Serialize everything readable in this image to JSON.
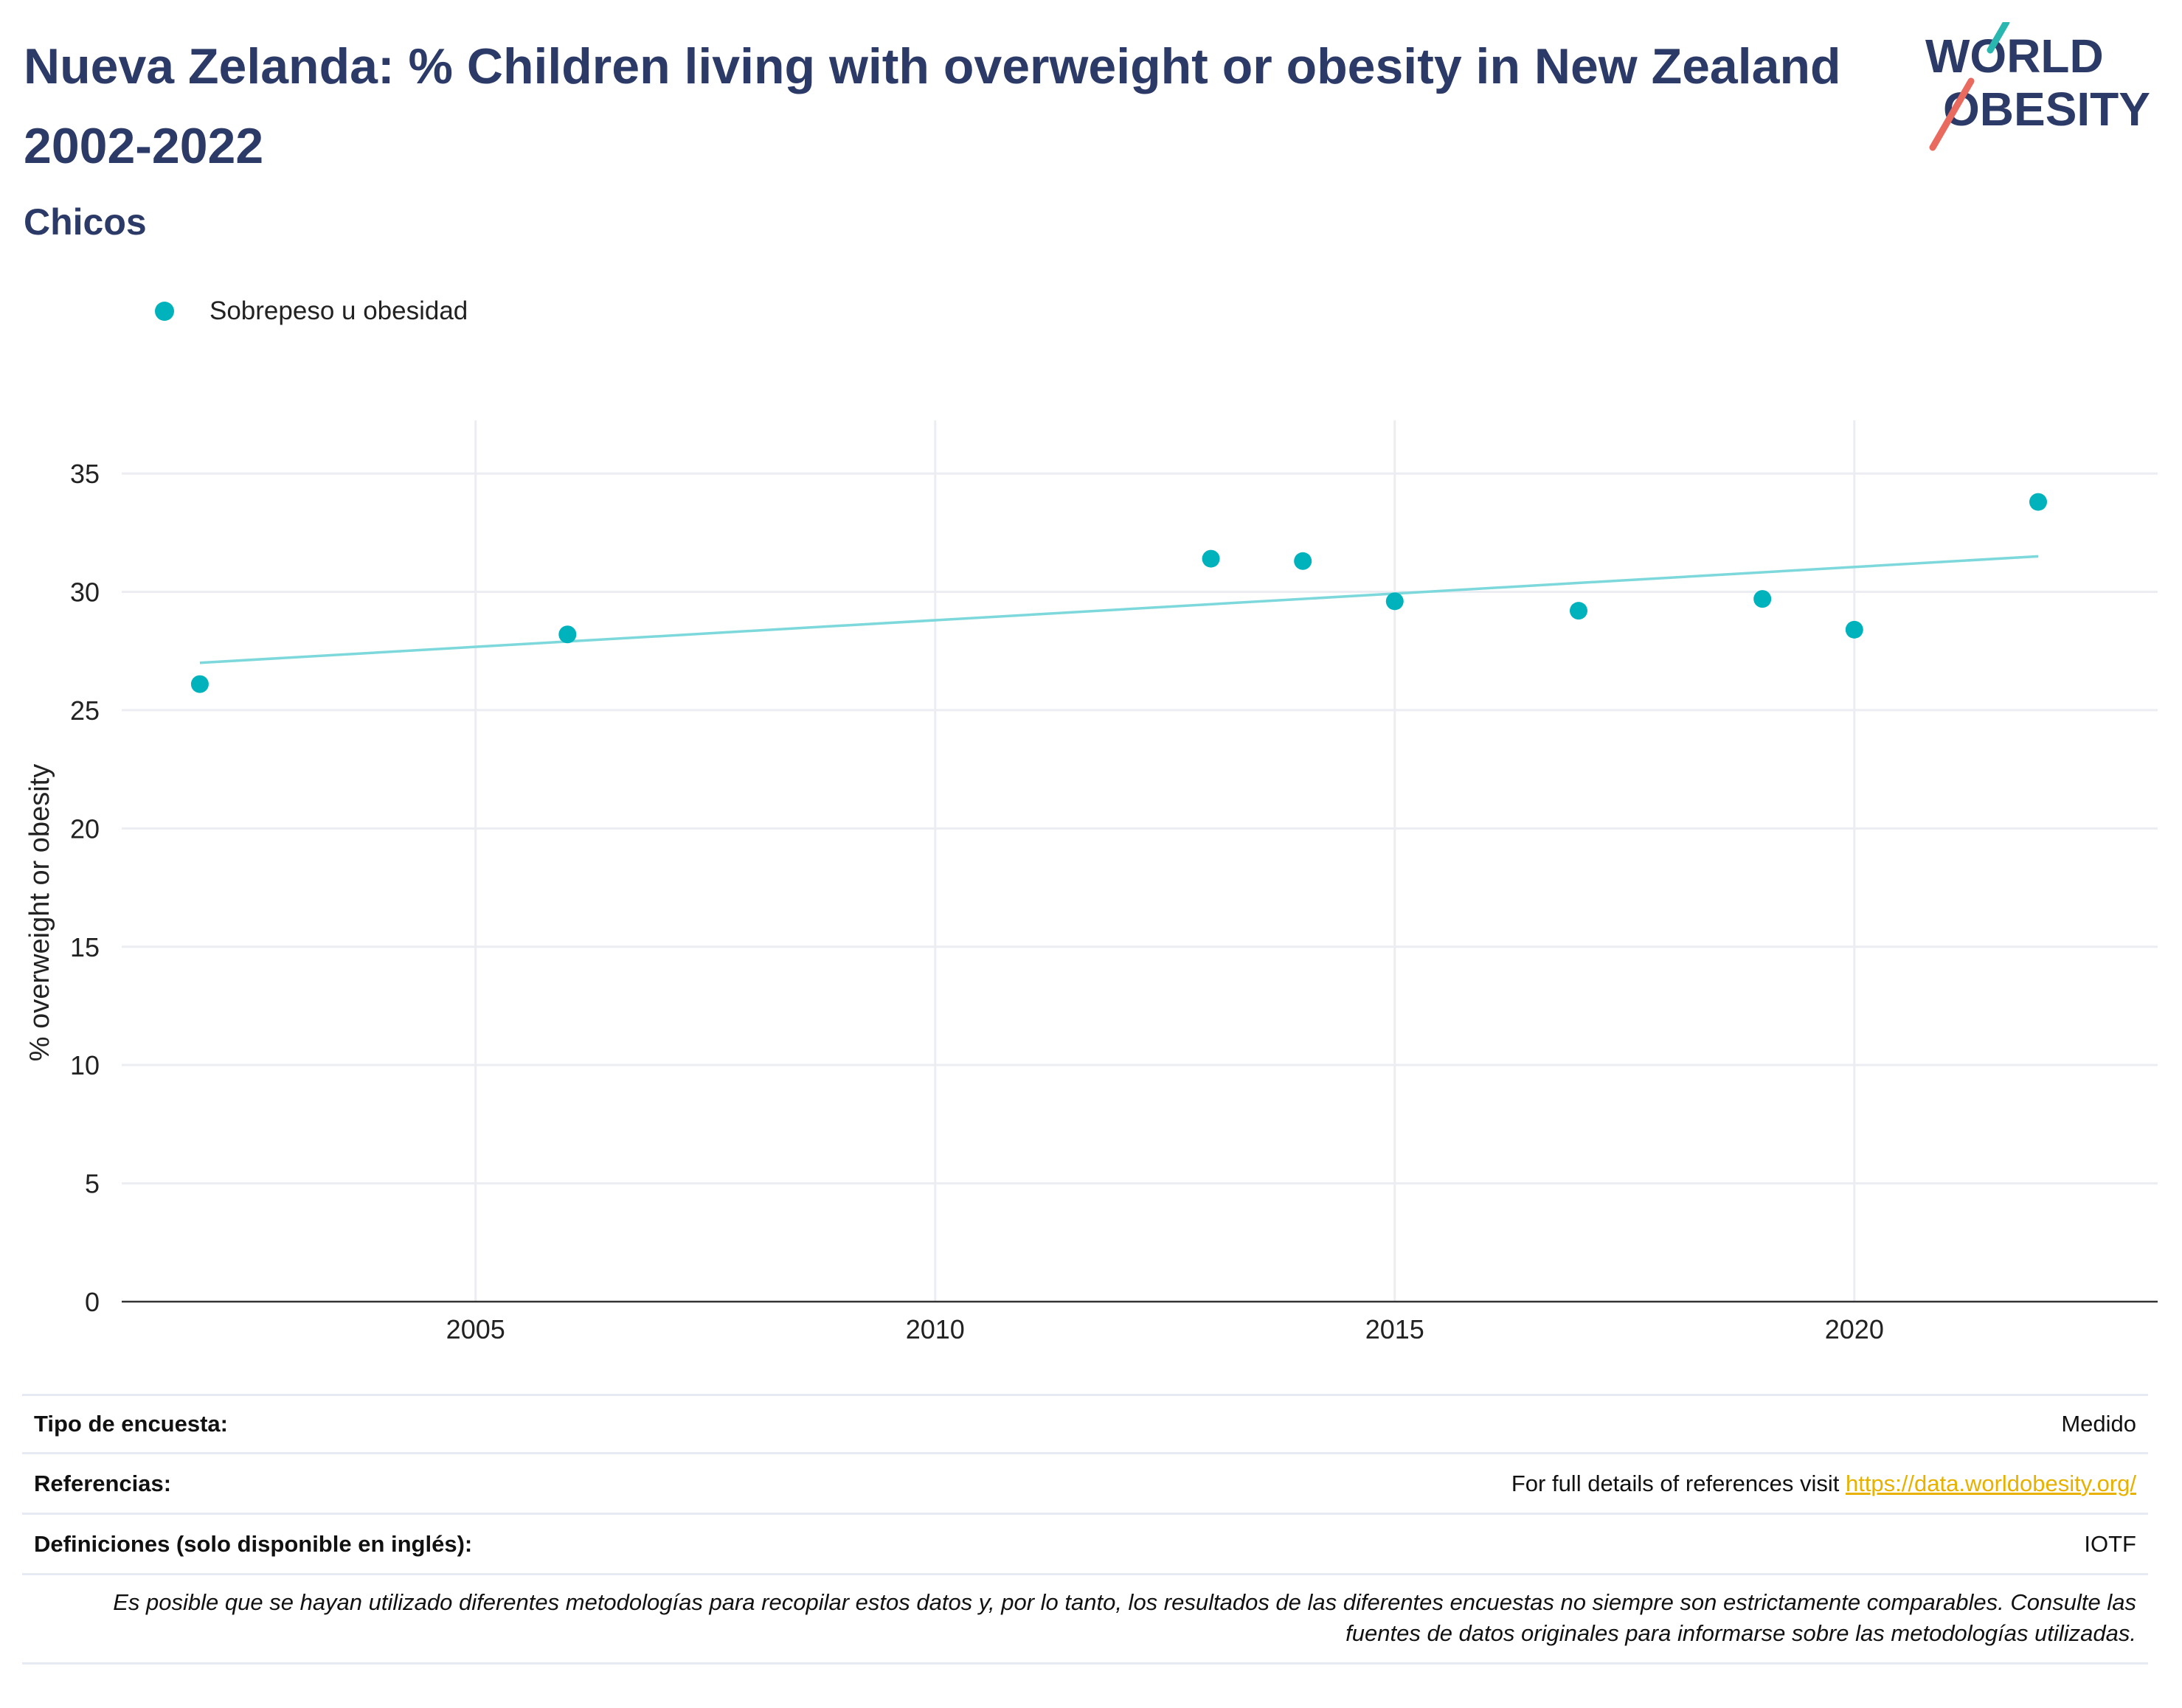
{
  "title": "Nueva Zelanda: % Children living with overweight or obesity in New Zealand 2002-2022",
  "subtitle": "Chicos",
  "logo": {
    "line1": "WORLD",
    "line2": "OBESITY"
  },
  "colors": {
    "title": "#2b3a67",
    "series": "#00b2bb",
    "trend": "#7dd8dc",
    "link": "#e8b100",
    "logo_teal": "#2ab7b0",
    "logo_coral": "#e96a5e"
  },
  "chart_data": {
    "type": "scatter",
    "ylabel": "% overweight or obesity",
    "xlabel": "",
    "xlim": [
      2001.15,
      2023.3
    ],
    "ylim": [
      0,
      36
    ],
    "x_ticks": [
      2005,
      2010,
      2015,
      2020
    ],
    "y_ticks": [
      0,
      5,
      10,
      15,
      20,
      25,
      30,
      35
    ],
    "grid": true,
    "legend_position": "top-left",
    "series": [
      {
        "name": "Sobrepeso u obesidad",
        "x": [
          2002,
          2006,
          2013,
          2014,
          2015,
          2017,
          2019,
          2020,
          2022
        ],
        "y": [
          26.1,
          28.2,
          31.4,
          31.3,
          29.6,
          29.2,
          29.7,
          28.4,
          33.8
        ]
      }
    ],
    "trendline": {
      "x": [
        2002,
        2022
      ],
      "y": [
        27.0,
        31.5
      ]
    }
  },
  "info": [
    {
      "key": "Tipo de encuesta:",
      "value": "Medido"
    },
    {
      "key": "Referencias:",
      "value": "For full details of references visit ",
      "link": "https://data.worldobesity.org/"
    },
    {
      "key": "Definiciones (solo disponible en inglés):",
      "value": "IOTF"
    }
  ],
  "note": "Es posible que se hayan utilizado diferentes metodologías para recopilar estos datos y, por lo tanto, los resultados de las diferentes encuestas no siempre son estrictamente comparables. Consulte las fuentes de datos originales para informarse sobre las metodologías utilizadas."
}
